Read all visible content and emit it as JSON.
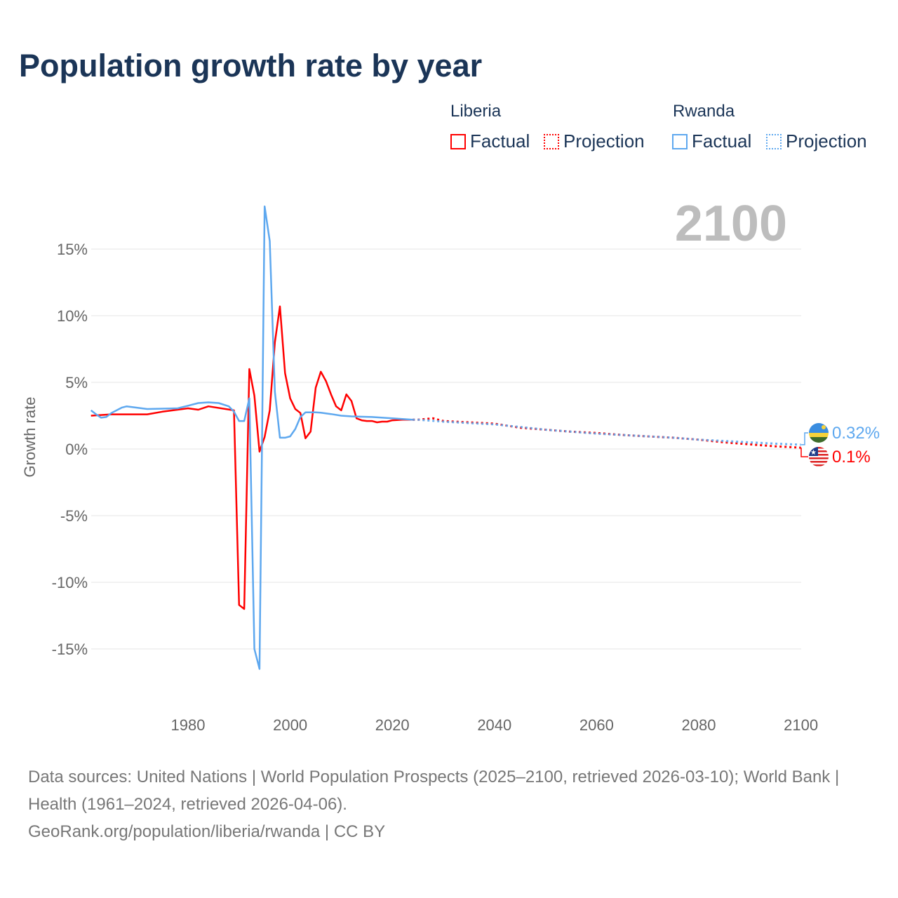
{
  "chart_data": {
    "type": "line",
    "title": "Population growth rate by year",
    "ylabel": "Growth rate",
    "xlabel": "",
    "xlim": [
      1961,
      2100
    ],
    "ylim": [
      -18,
      20
    ],
    "xticks": [
      "1980",
      "2000",
      "2020",
      "2040",
      "2060",
      "2080",
      "2100"
    ],
    "yticks": [
      "15%",
      "10%",
      "5%",
      "0%",
      "-5%",
      "-10%",
      "-15%"
    ],
    "current_year": "2100",
    "legend": {
      "groups": [
        {
          "name": "Liberia",
          "factual": "Factual",
          "projection": "Projection"
        },
        {
          "name": "Rwanda",
          "factual": "Factual",
          "projection": "Projection"
        }
      ]
    },
    "series": [
      {
        "name": "Liberia",
        "color": "#ff0000",
        "end_label": "0.1%",
        "flag": "liberia-flag",
        "factual": [
          [
            1961,
            2.5
          ],
          [
            1965,
            2.6
          ],
          [
            1970,
            2.6
          ],
          [
            1972,
            2.6
          ],
          [
            1975,
            2.8
          ],
          [
            1980,
            3.05
          ],
          [
            1982,
            2.95
          ],
          [
            1984,
            3.2
          ],
          [
            1989,
            2.9
          ],
          [
            1990,
            -11.7
          ],
          [
            1991,
            -12.0
          ],
          [
            1992,
            6.0
          ],
          [
            1993,
            4.0
          ],
          [
            1994,
            -0.2
          ],
          [
            1995,
            0.9
          ],
          [
            1996,
            2.9
          ],
          [
            1997,
            8.0
          ],
          [
            1998,
            10.7
          ],
          [
            1999,
            5.7
          ],
          [
            2000,
            3.8
          ],
          [
            2001,
            3.0
          ],
          [
            2002,
            2.7
          ],
          [
            2003,
            0.8
          ],
          [
            2004,
            1.3
          ],
          [
            2005,
            4.6
          ],
          [
            2006,
            5.8
          ],
          [
            2007,
            5.1
          ],
          [
            2008,
            4.1
          ],
          [
            2009,
            3.2
          ],
          [
            2010,
            2.9
          ],
          [
            2011,
            4.1
          ],
          [
            2012,
            3.6
          ],
          [
            2013,
            2.3
          ],
          [
            2014,
            2.15
          ],
          [
            2015,
            2.1
          ],
          [
            2016,
            2.1
          ],
          [
            2017,
            2.0
          ],
          [
            2018,
            2.05
          ],
          [
            2019,
            2.05
          ],
          [
            2020,
            2.15
          ],
          [
            2022,
            2.2
          ],
          [
            2024,
            2.2
          ]
        ],
        "projection": [
          [
            2024,
            2.2
          ],
          [
            2025,
            2.2
          ],
          [
            2028,
            2.3
          ],
          [
            2030,
            2.1
          ],
          [
            2035,
            2.0
          ],
          [
            2040,
            1.9
          ],
          [
            2045,
            1.6
          ],
          [
            2050,
            1.45
          ],
          [
            2055,
            1.3
          ],
          [
            2060,
            1.2
          ],
          [
            2065,
            1.05
          ],
          [
            2070,
            0.95
          ],
          [
            2075,
            0.85
          ],
          [
            2080,
            0.7
          ],
          [
            2085,
            0.5
          ],
          [
            2090,
            0.35
          ],
          [
            2095,
            0.2
          ],
          [
            2100,
            0.1
          ]
        ]
      },
      {
        "name": "Rwanda",
        "color": "#5ea8ef",
        "end_label": "0.32%",
        "flag": "rwanda-flag",
        "factual": [
          [
            1961,
            2.9
          ],
          [
            1962,
            2.6
          ],
          [
            1963,
            2.35
          ],
          [
            1964,
            2.4
          ],
          [
            1965,
            2.7
          ],
          [
            1967,
            3.1
          ],
          [
            1968,
            3.2
          ],
          [
            1970,
            3.1
          ],
          [
            1972,
            3.0
          ],
          [
            1978,
            3.05
          ],
          [
            1980,
            3.25
          ],
          [
            1982,
            3.45
          ],
          [
            1984,
            3.5
          ],
          [
            1986,
            3.45
          ],
          [
            1988,
            3.2
          ],
          [
            1989,
            2.8
          ],
          [
            1990,
            2.1
          ],
          [
            1991,
            2.1
          ],
          [
            1992,
            3.8
          ],
          [
            1993,
            -15.0
          ],
          [
            1994,
            -16.5
          ],
          [
            1995,
            18.2
          ],
          [
            1996,
            15.6
          ],
          [
            1997,
            4.3
          ],
          [
            1998,
            0.85
          ],
          [
            1999,
            0.85
          ],
          [
            2000,
            0.95
          ],
          [
            2001,
            1.5
          ],
          [
            2002,
            2.4
          ],
          [
            2003,
            2.75
          ],
          [
            2005,
            2.75
          ],
          [
            2006,
            2.72
          ],
          [
            2008,
            2.62
          ],
          [
            2010,
            2.5
          ],
          [
            2012,
            2.45
          ],
          [
            2016,
            2.4
          ],
          [
            2020,
            2.3
          ],
          [
            2024,
            2.2
          ]
        ],
        "projection": [
          [
            2024,
            2.2
          ],
          [
            2025,
            2.2
          ],
          [
            2030,
            2.05
          ],
          [
            2035,
            1.95
          ],
          [
            2040,
            1.85
          ],
          [
            2045,
            1.65
          ],
          [
            2050,
            1.45
          ],
          [
            2055,
            1.3
          ],
          [
            2060,
            1.15
          ],
          [
            2065,
            1.05
          ],
          [
            2070,
            0.95
          ],
          [
            2075,
            0.85
          ],
          [
            2080,
            0.7
          ],
          [
            2085,
            0.6
          ],
          [
            2090,
            0.5
          ],
          [
            2095,
            0.4
          ],
          [
            2100,
            0.32
          ]
        ]
      }
    ]
  },
  "footer": {
    "line1": "Data sources: United Nations | World Population Prospects (2025–2100, retrieved 2026-03-10); World Bank | Health (1961–2024, retrieved 2026-04-06).",
    "line2": "GeoRank.org/population/liberia/rwanda | CC BY"
  }
}
